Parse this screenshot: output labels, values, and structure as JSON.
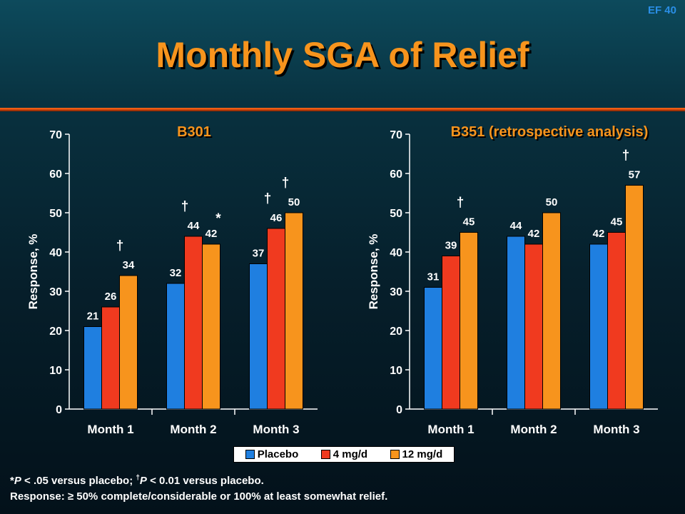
{
  "slide": {
    "id": "EF 40",
    "title": "Monthly SGA of Relief"
  },
  "colors": {
    "placebo": "#1f7fe0",
    "mg4": "#f03a1f",
    "mg12": "#f7941d",
    "accent": "#f7941d"
  },
  "chart_data": [
    {
      "type": "bar",
      "title": "B301",
      "ylabel": "Response, %",
      "ylim": [
        0,
        70
      ],
      "yticks": [
        0,
        10,
        20,
        30,
        40,
        50,
        60,
        70
      ],
      "categories": [
        "Month 1",
        "Month 2",
        "Month 3"
      ],
      "series": [
        {
          "name": "Placebo",
          "values": [
            21,
            32,
            37
          ]
        },
        {
          "name": "4 mg/d",
          "values": [
            26,
            44,
            46
          ]
        },
        {
          "name": "12 mg/d",
          "values": [
            34,
            42,
            50
          ]
        }
      ],
      "markers": [
        [
          "",
          "",
          "†"
        ],
        [
          "",
          "†",
          "*"
        ],
        [
          "",
          "†",
          "†"
        ]
      ]
    },
    {
      "type": "bar",
      "title": "B351 (retrospective analysis)",
      "ylabel": "Response, %",
      "ylim": [
        0,
        70
      ],
      "yticks": [
        0,
        10,
        20,
        30,
        40,
        50,
        60,
        70
      ],
      "categories": [
        "Month 1",
        "Month 2",
        "Month 3"
      ],
      "series": [
        {
          "name": "Placebo",
          "values": [
            31,
            44,
            42
          ]
        },
        {
          "name": "4 mg/d",
          "values": [
            39,
            42,
            45
          ]
        },
        {
          "name": "12 mg/d",
          "values": [
            45,
            50,
            57
          ]
        }
      ],
      "markers": [
        [
          "",
          "",
          "†"
        ],
        [
          "",
          "",
          ""
        ],
        [
          "",
          "",
          "†"
        ]
      ]
    }
  ],
  "legend": [
    "Placebo",
    "4 mg/d",
    "12 mg/d"
  ],
  "footnotes": {
    "line1_prefix": "*",
    "line1_p1": "P",
    "line1_mid": " < .05 versus placebo; ",
    "line1_dagger": "†",
    "line1_p2": "P",
    "line1_end": " < 0.01 versus placebo.",
    "line2": "Response: ≥ 50% complete/considerable or 100% at least somewhat relief."
  }
}
